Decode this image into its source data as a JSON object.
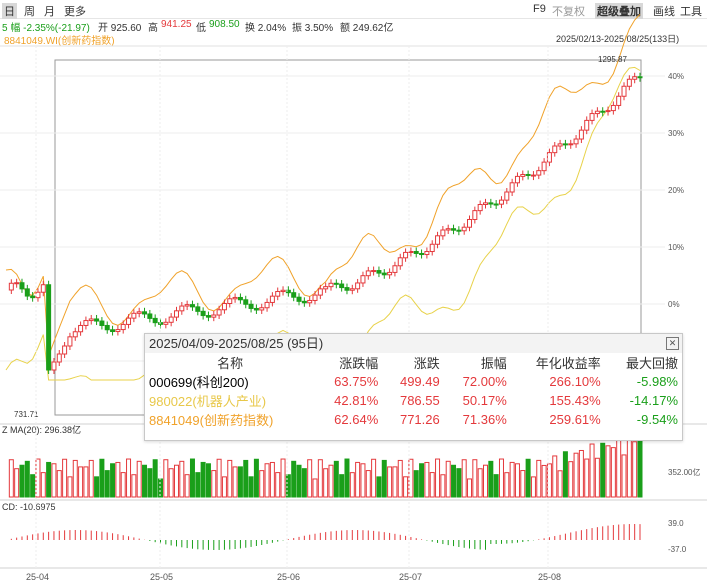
{
  "toolbar": {
    "period_day": "日",
    "period_week": "周",
    "period_month": "月",
    "more": "更多",
    "f9": "F9",
    "no_adjust": "不复权",
    "overlay": "超级叠加",
    "draw": "画线",
    "tools": "工具"
  },
  "quote": {
    "change": "5 幅 -2.35%(-21.97)",
    "open": "开 925.60",
    "high_label": "高",
    "high": "941.25",
    "low_label": "低",
    "low": "908.50",
    "turnover": "换 2.04%",
    "amplitude": "振 3.50%",
    "amount": "额 249.62亿",
    "overlay_series": "8841049.WI(创新药指数)",
    "range": "2025/02/13-2025/08/25(133日)"
  },
  "price_axis": {
    "ticks": [
      "40%",
      "30%",
      "20%",
      "10%",
      "0%",
      "%"
    ],
    "max_label": "1295.87",
    "min_label": "731.71"
  },
  "volume": {
    "label": "Z MA(20): 296.38亿",
    "ticks": [
      "352.00亿"
    ]
  },
  "macd": {
    "label": "CD: -10.6975",
    "ticks": [
      "39.0",
      "-37.0"
    ]
  },
  "x_axis": [
    "25-04",
    "25-05",
    "25-06",
    "25-07",
    "25-08"
  ],
  "popup": {
    "title": "2025/04/09-2025/08/25 (95日)",
    "headers": [
      "名称",
      "涨跌幅",
      "涨跌",
      "振幅",
      "年化收益率",
      "最大回撤"
    ],
    "rows": [
      {
        "name": "000699(科创200)",
        "pct": "63.75%",
        "chg": "499.49",
        "amp": "72.00%",
        "annual": "266.10%",
        "dd": "-5.98%"
      },
      {
        "name": "980022(机器人产业)",
        "pct": "42.81%",
        "chg": "786.55",
        "amp": "50.17%",
        "annual": "155.43%",
        "dd": "-14.17%"
      },
      {
        "name": "8841049(创新药指数)",
        "pct": "62.64%",
        "chg": "771.26",
        "amp": "71.36%",
        "annual": "259.61%",
        "dd": "-9.54%"
      }
    ]
  },
  "colors": {
    "up": "#e4393c",
    "down": "#1a9f1a",
    "overlay1": "#f0a22a",
    "overlay2": "#e8d24a",
    "select": "#2b6fd6"
  }
}
